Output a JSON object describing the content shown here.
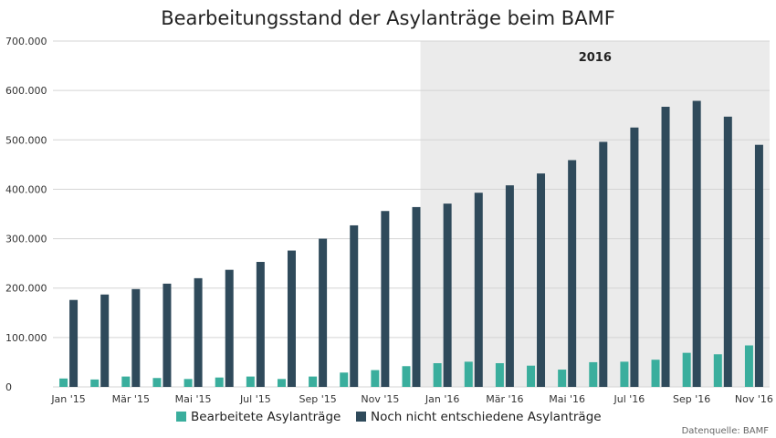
{
  "colors": {
    "processed": "#3aae9d",
    "pending": "#2f4a5b",
    "band": "#ebebeb",
    "grid": "#d4d4d4"
  },
  "chart_data": {
    "type": "bar",
    "title": "Bearbeitungsstand der Asylanträge beim BAMF",
    "xlabel": "",
    "ylabel": "",
    "ylim": [
      0,
      700000
    ],
    "yticks": [
      0,
      100000,
      200000,
      300000,
      400000,
      500000,
      600000,
      700000
    ],
    "ytick_labels": [
      "0",
      "100.000",
      "200.000",
      "300.000",
      "400.000",
      "500.000",
      "600.000",
      "700.000"
    ],
    "categories": [
      "Jan '15",
      "Feb '15",
      "Mär '15",
      "Apr '15",
      "Mai '15",
      "Jun '15",
      "Jul '15",
      "Aug '15",
      "Sep '15",
      "Okt '15",
      "Nov '15",
      "Dez '15",
      "Jan '16",
      "Feb '16",
      "Mär '16",
      "Apr '16",
      "Mai '16",
      "Jun '16",
      "Jul '16",
      "Aug '16",
      "Sep '16",
      "Okt '16",
      "Nov '16"
    ],
    "xtick_labels": [
      "Jan '15",
      "",
      "Mär '15",
      "",
      "Mai '15",
      "",
      "Jul '15",
      "",
      "Sep '15",
      "",
      "Nov '15",
      "",
      "Jan '16",
      "",
      "Mär '16",
      "",
      "Mai '16",
      "",
      "Jul '16",
      "",
      "Sep '16",
      "",
      "Nov '16"
    ],
    "series": [
      {
        "name": "Bearbeitete Asylanträge",
        "values": [
          17000,
          15000,
          21000,
          18000,
          16000,
          19000,
          21000,
          16000,
          21000,
          29000,
          34000,
          42000,
          48000,
          51000,
          48000,
          43000,
          35000,
          50000,
          51000,
          55000,
          69000,
          66000,
          84000
        ]
      },
      {
        "name": "Noch nicht entschiedene Asylanträge",
        "values": [
          176000,
          187000,
          198000,
          209000,
          220000,
          237000,
          253000,
          276000,
          300000,
          327000,
          356000,
          364000,
          371000,
          393000,
          408000,
          432000,
          459000,
          496000,
          525000,
          567000,
          579000,
          547000,
          490000
        ]
      }
    ],
    "highlight_band": {
      "label": "2016",
      "from_category": "Jan '16",
      "to_category": "Nov '16"
    },
    "legend": {
      "placement": "bottom-center",
      "items": [
        "Bearbeitete Asylanträge",
        "Noch nicht entschiedene Asylanträge"
      ]
    },
    "source": "Datenquelle: BAMF",
    "grid": true
  }
}
